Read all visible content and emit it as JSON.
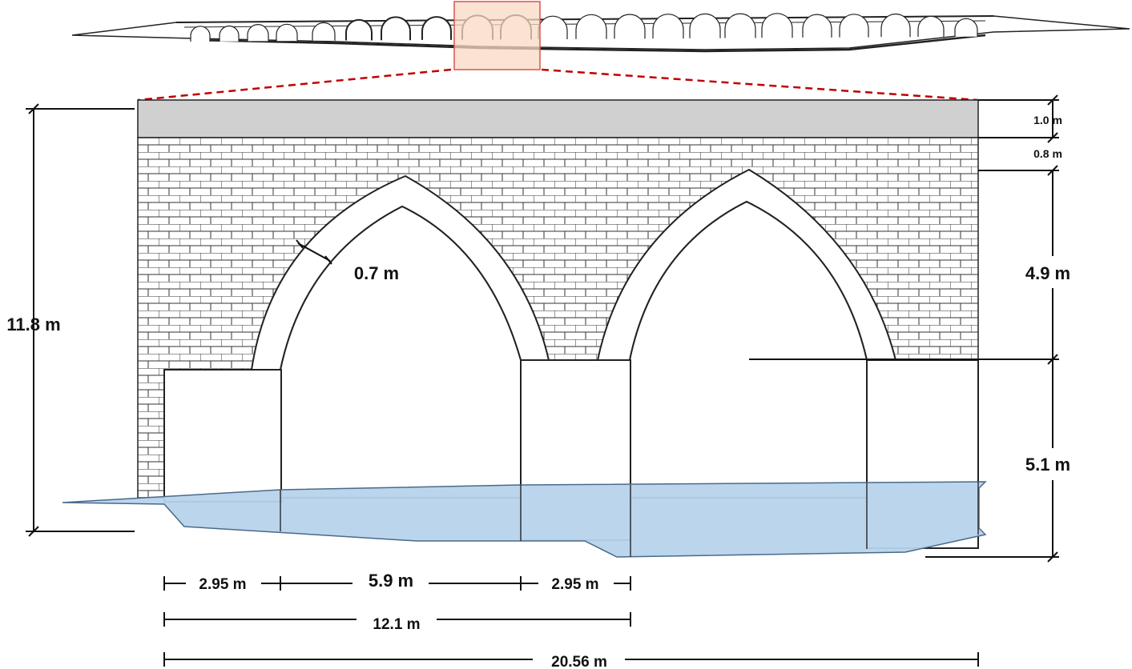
{
  "figure": {
    "dimensions": {
      "deck_thickness": "1.0 m",
      "spandrel_above_crown": "0.8 m",
      "arch_rise": "4.9 m",
      "pier_height": "5.1 m",
      "total_height": "11.8 m",
      "arch_ring_thickness": "0.7 m",
      "pier_width_left": "2.95 m",
      "arch_span": "5.9 m",
      "pier_width_right": "2.95 m",
      "bay_length": "12.1 m",
      "total_length": "20.56 m"
    },
    "colors": {
      "deck": "#d0d0d0",
      "water": "#b7d3ec",
      "highlight_fill": "#f8d9c3",
      "highlight_stroke": "#d9534f",
      "leader_lines": "#c00000",
      "lines": "#111111"
    }
  }
}
